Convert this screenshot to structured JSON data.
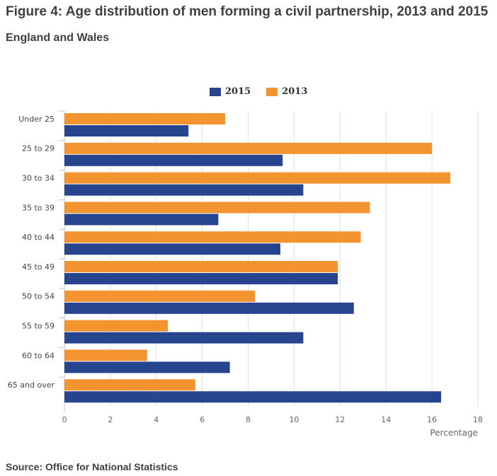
{
  "title": "Figure 4: Age distribution of men forming a civil partnership, 2013 and 2015",
  "subtitle": "England and Wales",
  "source": "Source: Office for National Statistics",
  "chart_data": {
    "type": "bar",
    "orientation": "horizontal",
    "categories": [
      "Under 25",
      "25 to 29",
      "30 to 34",
      "35 to 39",
      "40 to 44",
      "45 to 49",
      "50 to 54",
      "55 to 59",
      "60 to 64",
      "65 and over"
    ],
    "series": [
      {
        "name": "2013",
        "color": "#f39431",
        "values": [
          7.0,
          16.0,
          16.8,
          13.3,
          12.9,
          11.9,
          8.3,
          4.5,
          3.6,
          5.7
        ]
      },
      {
        "name": "2015",
        "color": "#27458f",
        "values": [
          5.4,
          9.5,
          10.4,
          6.7,
          9.4,
          11.9,
          12.6,
          10.4,
          7.2,
          16.4
        ]
      }
    ],
    "legend_order": [
      "2015",
      "2013"
    ],
    "xlabel": "Percentage",
    "xlim": [
      0,
      18
    ],
    "xticks": [
      0,
      2,
      4,
      6,
      8,
      10,
      12,
      14,
      16,
      18
    ],
    "grid": true,
    "legend_position": "top"
  }
}
